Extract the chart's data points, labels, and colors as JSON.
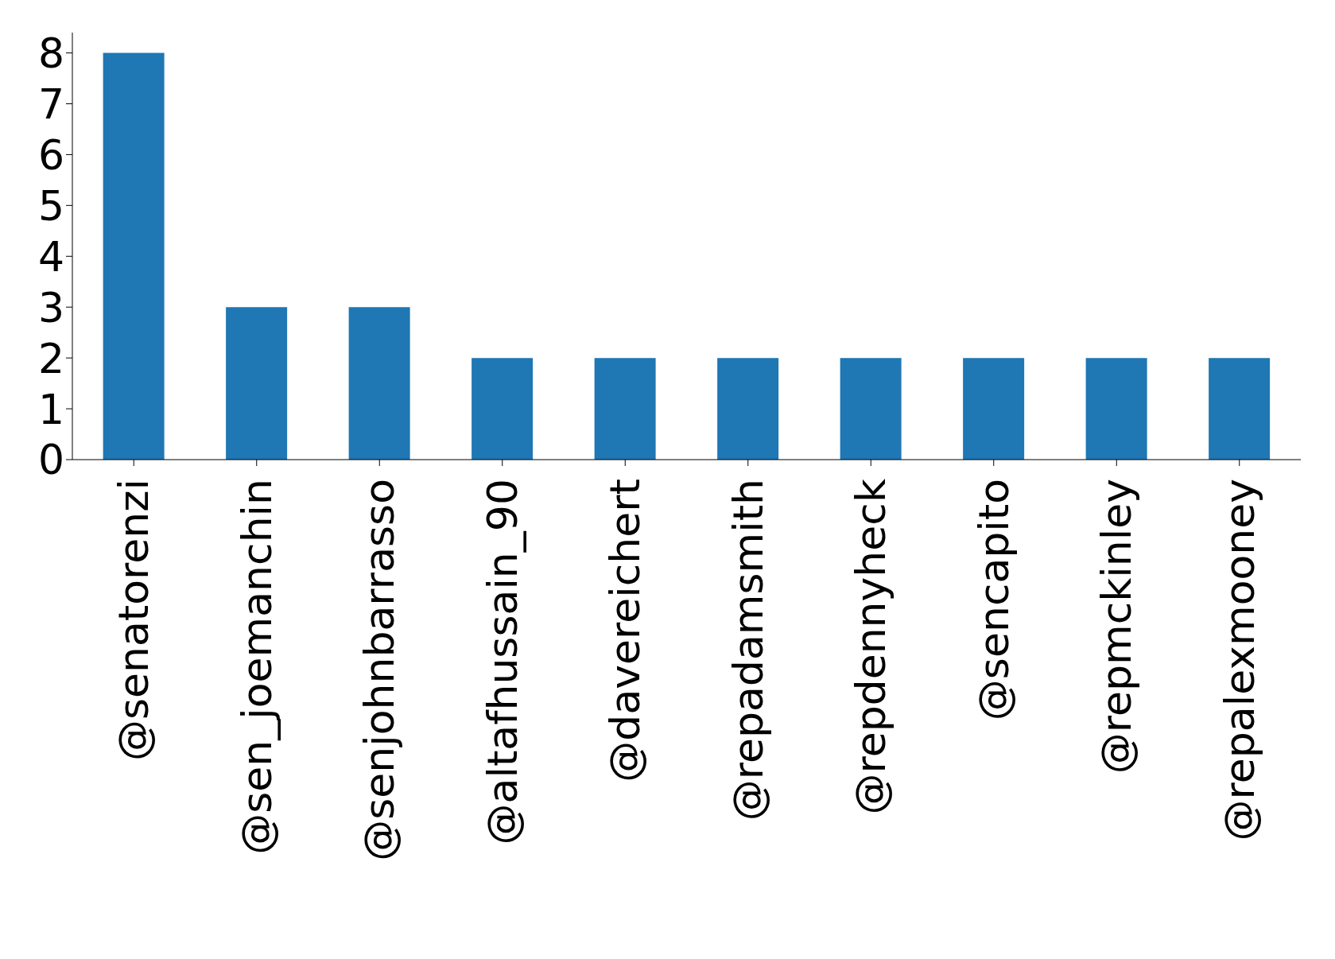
{
  "chart_data": {
    "type": "bar",
    "categories": [
      "@senatorenzi",
      "@sen_joemanchin",
      "@senjohnbarrasso",
      "@altafhussain_90",
      "@davereichert",
      "@repadamsmith",
      "@repdennyheck",
      "@sencapito",
      "@repmckinley",
      "@repalexmooney"
    ],
    "values": [
      8,
      3,
      3,
      2,
      2,
      2,
      2,
      2,
      2,
      2
    ],
    "color": "#1f77b4",
    "ylim": [
      0,
      8.4
    ],
    "yticks": [
      0,
      1,
      2,
      3,
      4,
      5,
      6,
      7,
      8
    ],
    "grid": false,
    "legend": false
  }
}
